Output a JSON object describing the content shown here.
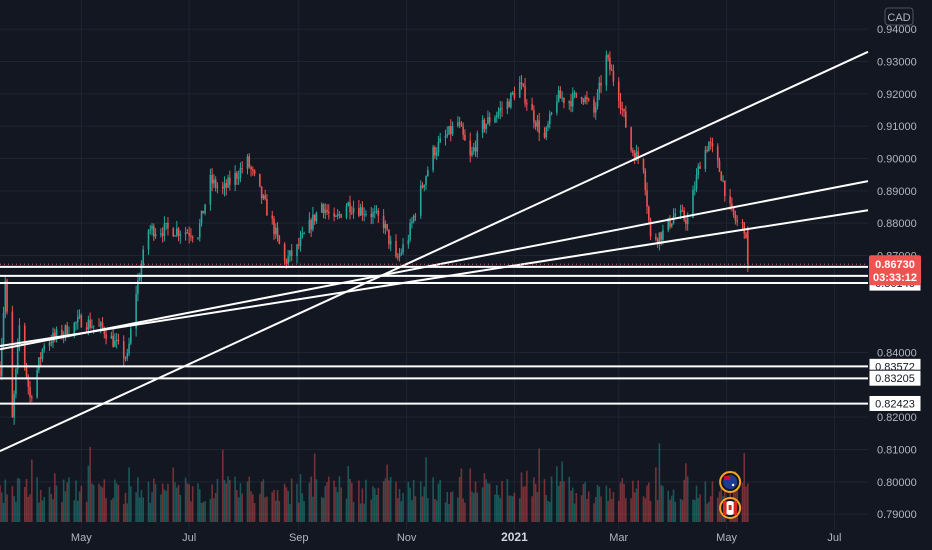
{
  "currency": "CAD",
  "chart_data": {
    "type": "candlestick",
    "quote_currency": "CAD",
    "y_axis": {
      "ticks": [
        "0.94000",
        "0.93000",
        "0.92000",
        "0.91000",
        "0.90000",
        "0.89000",
        "0.88000",
        "0.87000",
        "0.84000",
        "0.82000",
        "0.81000",
        "0.80000",
        "0.79000"
      ],
      "range": [
        0.788,
        0.942
      ],
      "side": "right"
    },
    "x_axis": {
      "ticks": [
        {
          "label": "May",
          "date": "2020-05-01",
          "bold": false
        },
        {
          "label": "Jul",
          "date": "2020-07-01",
          "bold": false
        },
        {
          "label": "Sep",
          "date": "2020-09-01",
          "bold": false
        },
        {
          "label": "Nov",
          "date": "2020-11-01",
          "bold": false
        },
        {
          "label": "2021",
          "date": "2021-01-01",
          "bold": true
        },
        {
          "label": "Mar",
          "date": "2021-03-01",
          "bold": false
        },
        {
          "label": "May",
          "date": "2021-05-01",
          "bold": false
        },
        {
          "label": "Jul",
          "date": "2021-07-01",
          "bold": false
        }
      ],
      "range": [
        "2020-03-16",
        "2021-07-20"
      ]
    },
    "price_path": [
      [
        "2020-03-16",
        0.835
      ],
      [
        "2020-03-19",
        0.862
      ],
      [
        "2020-03-23",
        0.819
      ],
      [
        "2020-03-27",
        0.848
      ],
      [
        "2020-04-02",
        0.826
      ],
      [
        "2020-04-10",
        0.843
      ],
      [
        "2020-04-20",
        0.846
      ],
      [
        "2020-05-01",
        0.85
      ],
      [
        "2020-05-14",
        0.847
      ],
      [
        "2020-05-27",
        0.838
      ],
      [
        "2020-06-01",
        0.859
      ],
      [
        "2020-06-08",
        0.878
      ],
      [
        "2020-06-22",
        0.878
      ],
      [
        "2020-07-06",
        0.877
      ],
      [
        "2020-07-13",
        0.893
      ],
      [
        "2020-07-20",
        0.89
      ],
      [
        "2020-08-03",
        0.899
      ],
      [
        "2020-08-17",
        0.88
      ],
      [
        "2020-08-24",
        0.868
      ],
      [
        "2020-08-31",
        0.872
      ],
      [
        "2020-09-14",
        0.886
      ],
      [
        "2020-09-21",
        0.88
      ],
      [
        "2020-09-28",
        0.886
      ],
      [
        "2020-10-12",
        0.883
      ],
      [
        "2020-10-19",
        0.88
      ],
      [
        "2020-10-26",
        0.868
      ],
      [
        "2020-11-02",
        0.876
      ],
      [
        "2020-11-09",
        0.89
      ],
      [
        "2020-11-16",
        0.902
      ],
      [
        "2020-11-30",
        0.911
      ],
      [
        "2020-12-07",
        0.9
      ],
      [
        "2020-12-14",
        0.91
      ],
      [
        "2020-12-28",
        0.917
      ],
      [
        "2021-01-04",
        0.923
      ],
      [
        "2021-01-11",
        0.914
      ],
      [
        "2021-01-18",
        0.906
      ],
      [
        "2021-01-25",
        0.919
      ],
      [
        "2021-02-01",
        0.918
      ],
      [
        "2021-02-08",
        0.92
      ],
      [
        "2021-02-15",
        0.914
      ],
      [
        "2021-02-22",
        0.931
      ],
      [
        "2021-03-01",
        0.92
      ],
      [
        "2021-03-08",
        0.903
      ],
      [
        "2021-03-15",
        0.898
      ],
      [
        "2021-03-19",
        0.875
      ],
      [
        "2021-03-26",
        0.877
      ],
      [
        "2021-04-02",
        0.883
      ],
      [
        "2021-04-09",
        0.881
      ],
      [
        "2021-04-16",
        0.899
      ],
      [
        "2021-04-21",
        0.905
      ],
      [
        "2021-04-28",
        0.895
      ],
      [
        "2021-05-03",
        0.884
      ],
      [
        "2021-05-07",
        0.88
      ],
      [
        "2021-05-11",
        0.879
      ],
      [
        "2021-05-13",
        0.8673
      ]
    ],
    "last_price": "0.86730",
    "countdown": "03:33:12",
    "price_tags": [
      "0.86376",
      "0.86146",
      "0.83572",
      "0.83205",
      "0.82423"
    ],
    "horizontal_levels": [
      0.8665,
      0.8637,
      0.8615,
      0.8357,
      0.832,
      0.8242
    ],
    "trendlines": [
      {
        "from": [
          "2020-03-16",
          0.8095
        ],
        "to": [
          "2021-07-20",
          0.933
        ]
      },
      {
        "from": [
          "2020-03-16",
          0.841
        ],
        "to": [
          "2021-07-20",
          0.893
        ]
      },
      {
        "from": [
          "2020-03-16",
          0.842
        ],
        "to": [
          "2021-07-20",
          0.884
        ]
      }
    ],
    "colors": {
      "background": "#131722",
      "up": "#26a69a",
      "down": "#ef5350",
      "level_line": "#ffffff",
      "grid": "#1f2433",
      "axis_text": "#b2b5be"
    },
    "event_markers": [
      {
        "name": "australia-flag-icon",
        "date": "2021-05-03"
      },
      {
        "name": "canada-flag-icon",
        "date": "2021-05-03"
      }
    ]
  }
}
